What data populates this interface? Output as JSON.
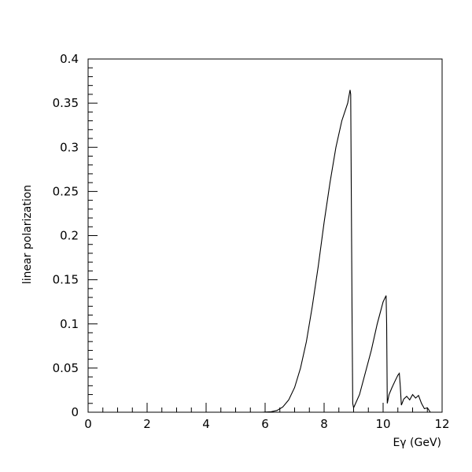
{
  "chart_data": {
    "type": "line",
    "title": "",
    "xlabel": "Eγ (GeV)",
    "ylabel": "linear polarization",
    "xlim": [
      0,
      12
    ],
    "ylim": [
      0,
      0.4
    ],
    "grid": false,
    "legend": "none",
    "line_color": "#000000",
    "x_ticks": [
      "0",
      "2",
      "4",
      "6",
      "8",
      "10",
      "12"
    ],
    "y_ticks": [
      "0",
      "0.05",
      "0.1",
      "0.15",
      "0.2",
      "0.25",
      "0.3",
      "0.35",
      "0.4"
    ],
    "series": [
      {
        "x": [
          0.0,
          5.9,
          6.2,
          6.4,
          6.6,
          6.8,
          7.0,
          7.2,
          7.4,
          7.6,
          7.8,
          8.0,
          8.2,
          8.4,
          8.6,
          8.8,
          8.88,
          8.9,
          8.95,
          8.97,
          9.0,
          9.2,
          9.4,
          9.6,
          9.8,
          10.0,
          10.1,
          10.12,
          10.14,
          10.2,
          10.3,
          10.4,
          10.5,
          10.55,
          10.58,
          10.62,
          10.7,
          10.8,
          10.9,
          11.0,
          11.1,
          11.2,
          11.3,
          11.4,
          11.5,
          11.6
        ],
        "y": [
          0.0,
          0.0,
          0.0005,
          0.002,
          0.006,
          0.014,
          0.028,
          0.05,
          0.08,
          0.12,
          0.165,
          0.215,
          0.26,
          0.3,
          0.33,
          0.35,
          0.365,
          0.36,
          0.1,
          0.01,
          0.005,
          0.02,
          0.045,
          0.07,
          0.1,
          0.125,
          0.132,
          0.1,
          0.01,
          0.02,
          0.028,
          0.035,
          0.042,
          0.044,
          0.03,
          0.008,
          0.015,
          0.018,
          0.014,
          0.02,
          0.016,
          0.019,
          0.01,
          0.004,
          0.005,
          0.0
        ]
      }
    ]
  }
}
